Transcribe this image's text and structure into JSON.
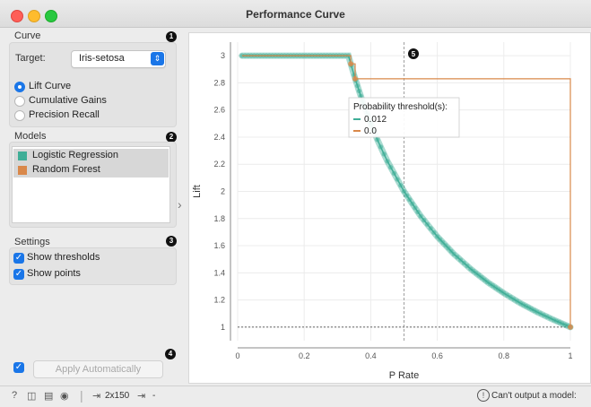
{
  "window": {
    "title": "Performance Curve"
  },
  "curve": {
    "section_label": "Curve",
    "badge": "1",
    "target_label": "Target:",
    "target_value": "Iris-setosa",
    "options": [
      {
        "label": "Lift Curve",
        "selected": true
      },
      {
        "label": "Cumulative Gains",
        "selected": false
      },
      {
        "label": "Precision Recall",
        "selected": false
      }
    ]
  },
  "models": {
    "section_label": "Models",
    "badge": "2",
    "items": [
      {
        "label": "Logistic Regression",
        "color": "#3fae97"
      },
      {
        "label": "Random Forest",
        "color": "#d9884a"
      }
    ]
  },
  "settings": {
    "section_label": "Settings",
    "badge": "3",
    "show_thresholds": "Show thresholds",
    "show_points": "Show points"
  },
  "apply": {
    "label": "Apply Automatically",
    "badge": "4"
  },
  "plot": {
    "badge": "5",
    "tooltip_title": "Probability threshold(s):",
    "tooltip_rows": [
      {
        "value": "0.012",
        "color": "#3fae97"
      },
      {
        "value": "0.0",
        "color": "#d9884a"
      }
    ]
  },
  "status": {
    "size_text": "2x150",
    "output_text": "-",
    "warning_text": "Can't output a model:"
  },
  "chart_data": {
    "type": "line",
    "xlabel": "P Rate",
    "ylabel": "Lift",
    "xlim": [
      0,
      1
    ],
    "ylim": [
      0.9,
      3.1
    ],
    "x_ticks": [
      "0",
      "0.2",
      "0.4",
      "0.6",
      "0.8",
      "1"
    ],
    "y_ticks": [
      "1",
      "1.2",
      "1.4",
      "1.6",
      "1.8",
      "2",
      "2.2",
      "2.4",
      "2.6",
      "2.8",
      "3"
    ],
    "grid": true,
    "threshold_line_x": 0.5,
    "baseline_y": 1,
    "series": [
      {
        "color": "#3fae97",
        "points": [
          [
            0.0133,
            3
          ],
          [
            0.333,
            3
          ],
          [
            0.35,
            2.857
          ],
          [
            0.36,
            2.778
          ],
          [
            0.37,
            2.703
          ],
          [
            0.38,
            2.632
          ],
          [
            0.4,
            2.5
          ],
          [
            0.42,
            2.381
          ],
          [
            0.45,
            2.222
          ],
          [
            0.5,
            2
          ],
          [
            0.55,
            1.818
          ],
          [
            0.6,
            1.667
          ],
          [
            0.65,
            1.538
          ],
          [
            0.7,
            1.429
          ],
          [
            0.75,
            1.333
          ],
          [
            0.8,
            1.25
          ],
          [
            0.85,
            1.176
          ],
          [
            0.9,
            1.111
          ],
          [
            0.95,
            1.053
          ],
          [
            1,
            1
          ]
        ]
      },
      {
        "color": "#d9884a",
        "points": [
          [
            0.0133,
            3
          ],
          [
            0.34,
            3
          ],
          [
            0.34,
            2.94
          ],
          [
            0.353,
            2.94
          ],
          [
            0.353,
            2.83
          ],
          [
            1,
            2.83
          ],
          [
            1,
            1
          ]
        ]
      }
    ]
  }
}
